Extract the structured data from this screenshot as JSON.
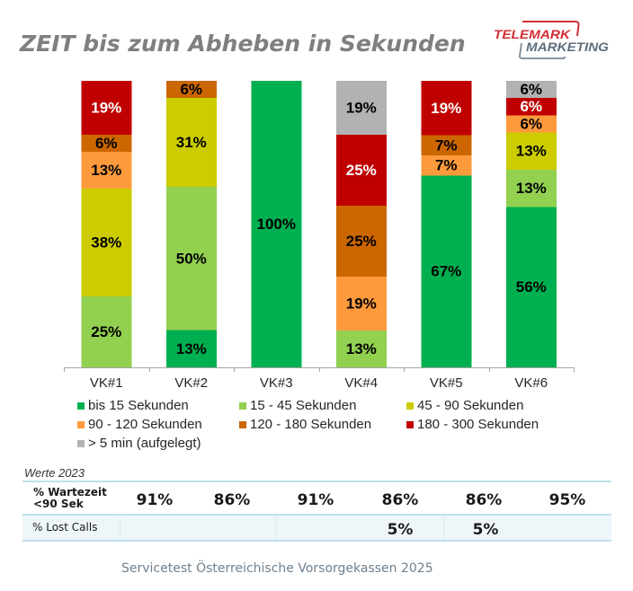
{
  "title": "ZEIT bis zum Abheben in Sekunden",
  "logo": {
    "line1": "TELEMARK",
    "line2": "MARKETING",
    "colors": {
      "primary": "#D42E35",
      "secondary": "#5E6E7C"
    }
  },
  "chart_data": {
    "type": "bar",
    "stacked": true,
    "normalized_100_percent": true,
    "title": "ZEIT bis zum Abheben in Sekunden",
    "xlabel": "",
    "ylabel": "",
    "ylim": [
      0,
      100
    ],
    "y_axis_visible": false,
    "grid": false,
    "legend": "bottom",
    "value_suffix": "%",
    "categories": [
      "VK#1",
      "VK#2",
      "VK#3",
      "VK#4",
      "VK#5",
      "VK#6"
    ],
    "series": [
      {
        "name": "bis 15 Sekunden",
        "color": "#00B050",
        "label_color": "#000000",
        "values": [
          0,
          13,
          100,
          0,
          67,
          56
        ]
      },
      {
        "name": "15 - 45 Sekunden",
        "color": "#92D050",
        "label_color": "#000000",
        "values": [
          25,
          50,
          0,
          13,
          0,
          13
        ]
      },
      {
        "name": "45 - 90 Sekunden",
        "color": "#CCCC00",
        "label_color": "#000000",
        "values": [
          38,
          31,
          0,
          0,
          0,
          13
        ]
      },
      {
        "name": "90 - 120 Sekunden",
        "color": "#FF9A3C",
        "label_color": "#000000",
        "values": [
          13,
          0,
          0,
          19,
          7,
          6
        ]
      },
      {
        "name": "120 - 180 Sekunden",
        "color": "#CC6600",
        "label_color": "#000000",
        "values": [
          6,
          6,
          0,
          25,
          7,
          0
        ]
      },
      {
        "name": "180 - 300 Sekunden",
        "color": "#C00000",
        "label_color": "#FFFFFF",
        "values": [
          19,
          0,
          0,
          25,
          19,
          6
        ]
      },
      {
        "name": "> 5 min (aufgelegt)",
        "color": "#B2B2B2",
        "label_color": "#000000",
        "values": [
          0,
          0,
          0,
          19,
          0,
          6
        ]
      }
    ]
  },
  "table": {
    "caption": "Werte 2023",
    "rows": [
      {
        "label_line1": "% Wartezeit",
        "label_line2": "<90 Sek",
        "values": [
          "91%",
          "86%",
          "91%",
          "86%",
          "86%",
          "95%"
        ]
      },
      {
        "label": "% Lost Calls",
        "values": [
          "",
          "",
          "",
          "5%",
          "5%",
          ""
        ]
      }
    ]
  },
  "footer": "Servicetest Österreichische Vorsorgekassen 2025"
}
